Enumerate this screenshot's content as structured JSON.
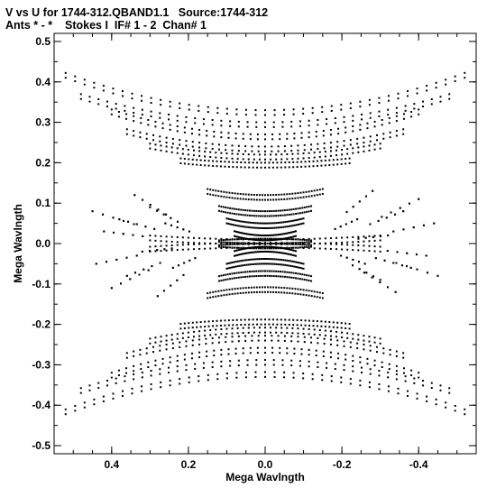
{
  "header": {
    "line1": "V vs U for 1744-312.QBAND1.1   Source:1744-312",
    "line2": "Ants * - *    Stokes I  IF# 1 - 2  Chan# 1"
  },
  "chart_data": {
    "type": "scatter",
    "title": "V vs U for 1744-312.QBAND1.1   Source:1744-312",
    "subtitle": "Ants * - *    Stokes I  IF# 1 - 2  Chan# 1",
    "xlabel": "Mega Wavlngth",
    "ylabel": "Mega Wavlngth",
    "xlim": [
      0.55,
      -0.55
    ],
    "ylim": [
      -0.52,
      0.52
    ],
    "x_ticks": [
      0.4,
      0.2,
      0.0,
      -0.2,
      -0.4
    ],
    "x_tick_labels": [
      "0.4",
      "0.2",
      "0.0",
      "-0.2",
      "-0.4"
    ],
    "y_ticks": [
      0.5,
      0.4,
      0.3,
      0.2,
      0.1,
      0.0,
      -0.1,
      -0.2,
      -0.3,
      -0.4,
      -0.5
    ],
    "y_tick_labels": [
      "0.5",
      "0.4",
      "0.3",
      "0.2",
      "0.1",
      "0.0",
      "-0.1",
      "-0.2",
      "-0.3",
      "-0.4",
      "-0.5"
    ],
    "grid": false,
    "marker_color": "#000000",
    "tracks": [
      {
        "u_max": 0.52,
        "vc": 0.33,
        "a": 0.62
      },
      {
        "u_max": 0.48,
        "vc": 0.3,
        "a": 0.55
      },
      {
        "u_max": 0.4,
        "vc": 0.27,
        "a": 0.7
      },
      {
        "u_max": 0.36,
        "vc": 0.24,
        "a": 0.6
      },
      {
        "u_max": 0.3,
        "vc": 0.22,
        "a": 0.55
      },
      {
        "u_max": 0.22,
        "vc": 0.2,
        "a": 0.4
      },
      {
        "u_max": 0.15,
        "vc": 0.12,
        "a": 1.2
      },
      {
        "u_max": 0.12,
        "vc": 0.08,
        "a": 1.6
      },
      {
        "u_max": 0.1,
        "vc": 0.05,
        "a": 2.2
      },
      {
        "u_max": 0.08,
        "vc": 0.02,
        "a": 3.0
      },
      {
        "u_max": 0.12,
        "vc": 0.0,
        "a": 0.5
      },
      {
        "u_max": 0.3,
        "vc": 0.01,
        "a": 0.2
      }
    ],
    "fan_points": [
      [
        0.45,
        0.08
      ],
      [
        0.44,
        -0.05
      ],
      [
        0.42,
        0.03
      ],
      [
        0.4,
        -0.11
      ],
      [
        0.38,
        0.06
      ],
      [
        0.36,
        -0.08
      ],
      [
        0.34,
        0.12
      ],
      [
        0.32,
        -0.02
      ],
      [
        0.3,
        0.09
      ],
      [
        0.28,
        -0.13
      ],
      [
        0.26,
        0.05
      ],
      [
        0.24,
        -0.06
      ],
      [
        -0.24,
        0.06
      ],
      [
        -0.26,
        -0.05
      ],
      [
        -0.28,
        0.13
      ],
      [
        -0.3,
        -0.09
      ],
      [
        -0.32,
        0.02
      ],
      [
        -0.34,
        -0.12
      ],
      [
        -0.36,
        0.08
      ],
      [
        -0.38,
        -0.06
      ],
      [
        -0.4,
        0.11
      ],
      [
        -0.42,
        -0.03
      ],
      [
        -0.44,
        0.05
      ],
      [
        -0.45,
        -0.08
      ]
    ]
  }
}
